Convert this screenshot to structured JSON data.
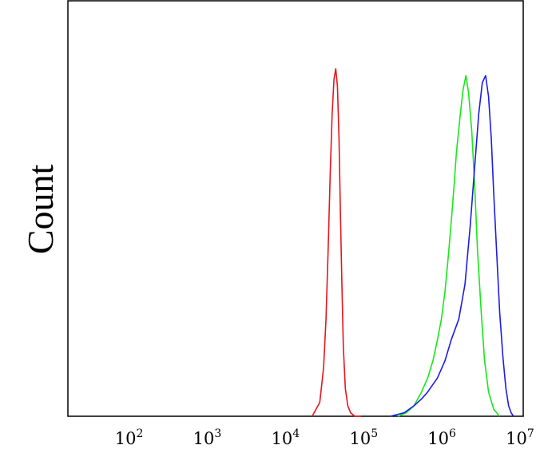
{
  "chart_data": {
    "type": "line",
    "title": "",
    "xlabel": "",
    "ylabel": "Count",
    "x_scale": "log",
    "xlim": [
      15,
      10000000
    ],
    "ylim": [
      0,
      1.0
    ],
    "grid": false,
    "legend": "none",
    "x_ticks": [
      {
        "value": 100,
        "base": "10",
        "exp": "2"
      },
      {
        "value": 1000,
        "base": "10",
        "exp": "3"
      },
      {
        "value": 10000,
        "base": "10",
        "exp": "4"
      },
      {
        "value": 100000,
        "base": "10",
        "exp": "5"
      },
      {
        "value": 1000000,
        "base": "10",
        "exp": "6"
      },
      {
        "value": 10000000,
        "base": "10",
        "exp": "7"
      }
    ],
    "series": [
      {
        "color": "#e8141c",
        "x": [
          20000,
          25000,
          28000,
          30000,
          32000,
          34000,
          36000,
          38000,
          40000,
          42000,
          44000,
          46000,
          48000,
          50000,
          53000,
          57000,
          62000,
          70000,
          85000
        ],
        "y": [
          0.0,
          0.04,
          0.14,
          0.28,
          0.48,
          0.7,
          0.87,
          0.97,
          1.0,
          0.95,
          0.8,
          0.58,
          0.37,
          0.2,
          0.08,
          0.03,
          0.01,
          0.0,
          0.0
        ]
      },
      {
        "color": "#18e818",
        "x": [
          250000,
          320000,
          400000,
          500000,
          600000,
          700000,
          800000,
          900000,
          1000000,
          1100000,
          1200000,
          1300000,
          1400000,
          1550000,
          1700000,
          1850000,
          2000000,
          2200000,
          2400000,
          2600000,
          2900000,
          3200000,
          3600000,
          4200000,
          5000000
        ],
        "y": [
          0.0,
          0.01,
          0.03,
          0.07,
          0.11,
          0.16,
          0.22,
          0.28,
          0.36,
          0.46,
          0.56,
          0.66,
          0.76,
          0.86,
          0.94,
          0.98,
          0.93,
          0.82,
          0.66,
          0.48,
          0.3,
          0.16,
          0.07,
          0.02,
          0.0
        ]
      },
      {
        "color": "#1c1ce8",
        "x": [
          200000,
          300000,
          400000,
          500000,
          600000,
          800000,
          1000000,
          1200000,
          1500000,
          1800000,
          2100000,
          2400000,
          2700000,
          3000000,
          3300000,
          3600000,
          3900000,
          4200000,
          4600000,
          5000000,
          5500000,
          6000000,
          6500000,
          7000000,
          7500000
        ],
        "y": [
          0.0,
          0.01,
          0.03,
          0.05,
          0.07,
          0.11,
          0.16,
          0.22,
          0.28,
          0.38,
          0.55,
          0.72,
          0.87,
          0.96,
          0.98,
          0.92,
          0.8,
          0.64,
          0.46,
          0.3,
          0.17,
          0.08,
          0.03,
          0.01,
          0.0
        ]
      }
    ]
  }
}
